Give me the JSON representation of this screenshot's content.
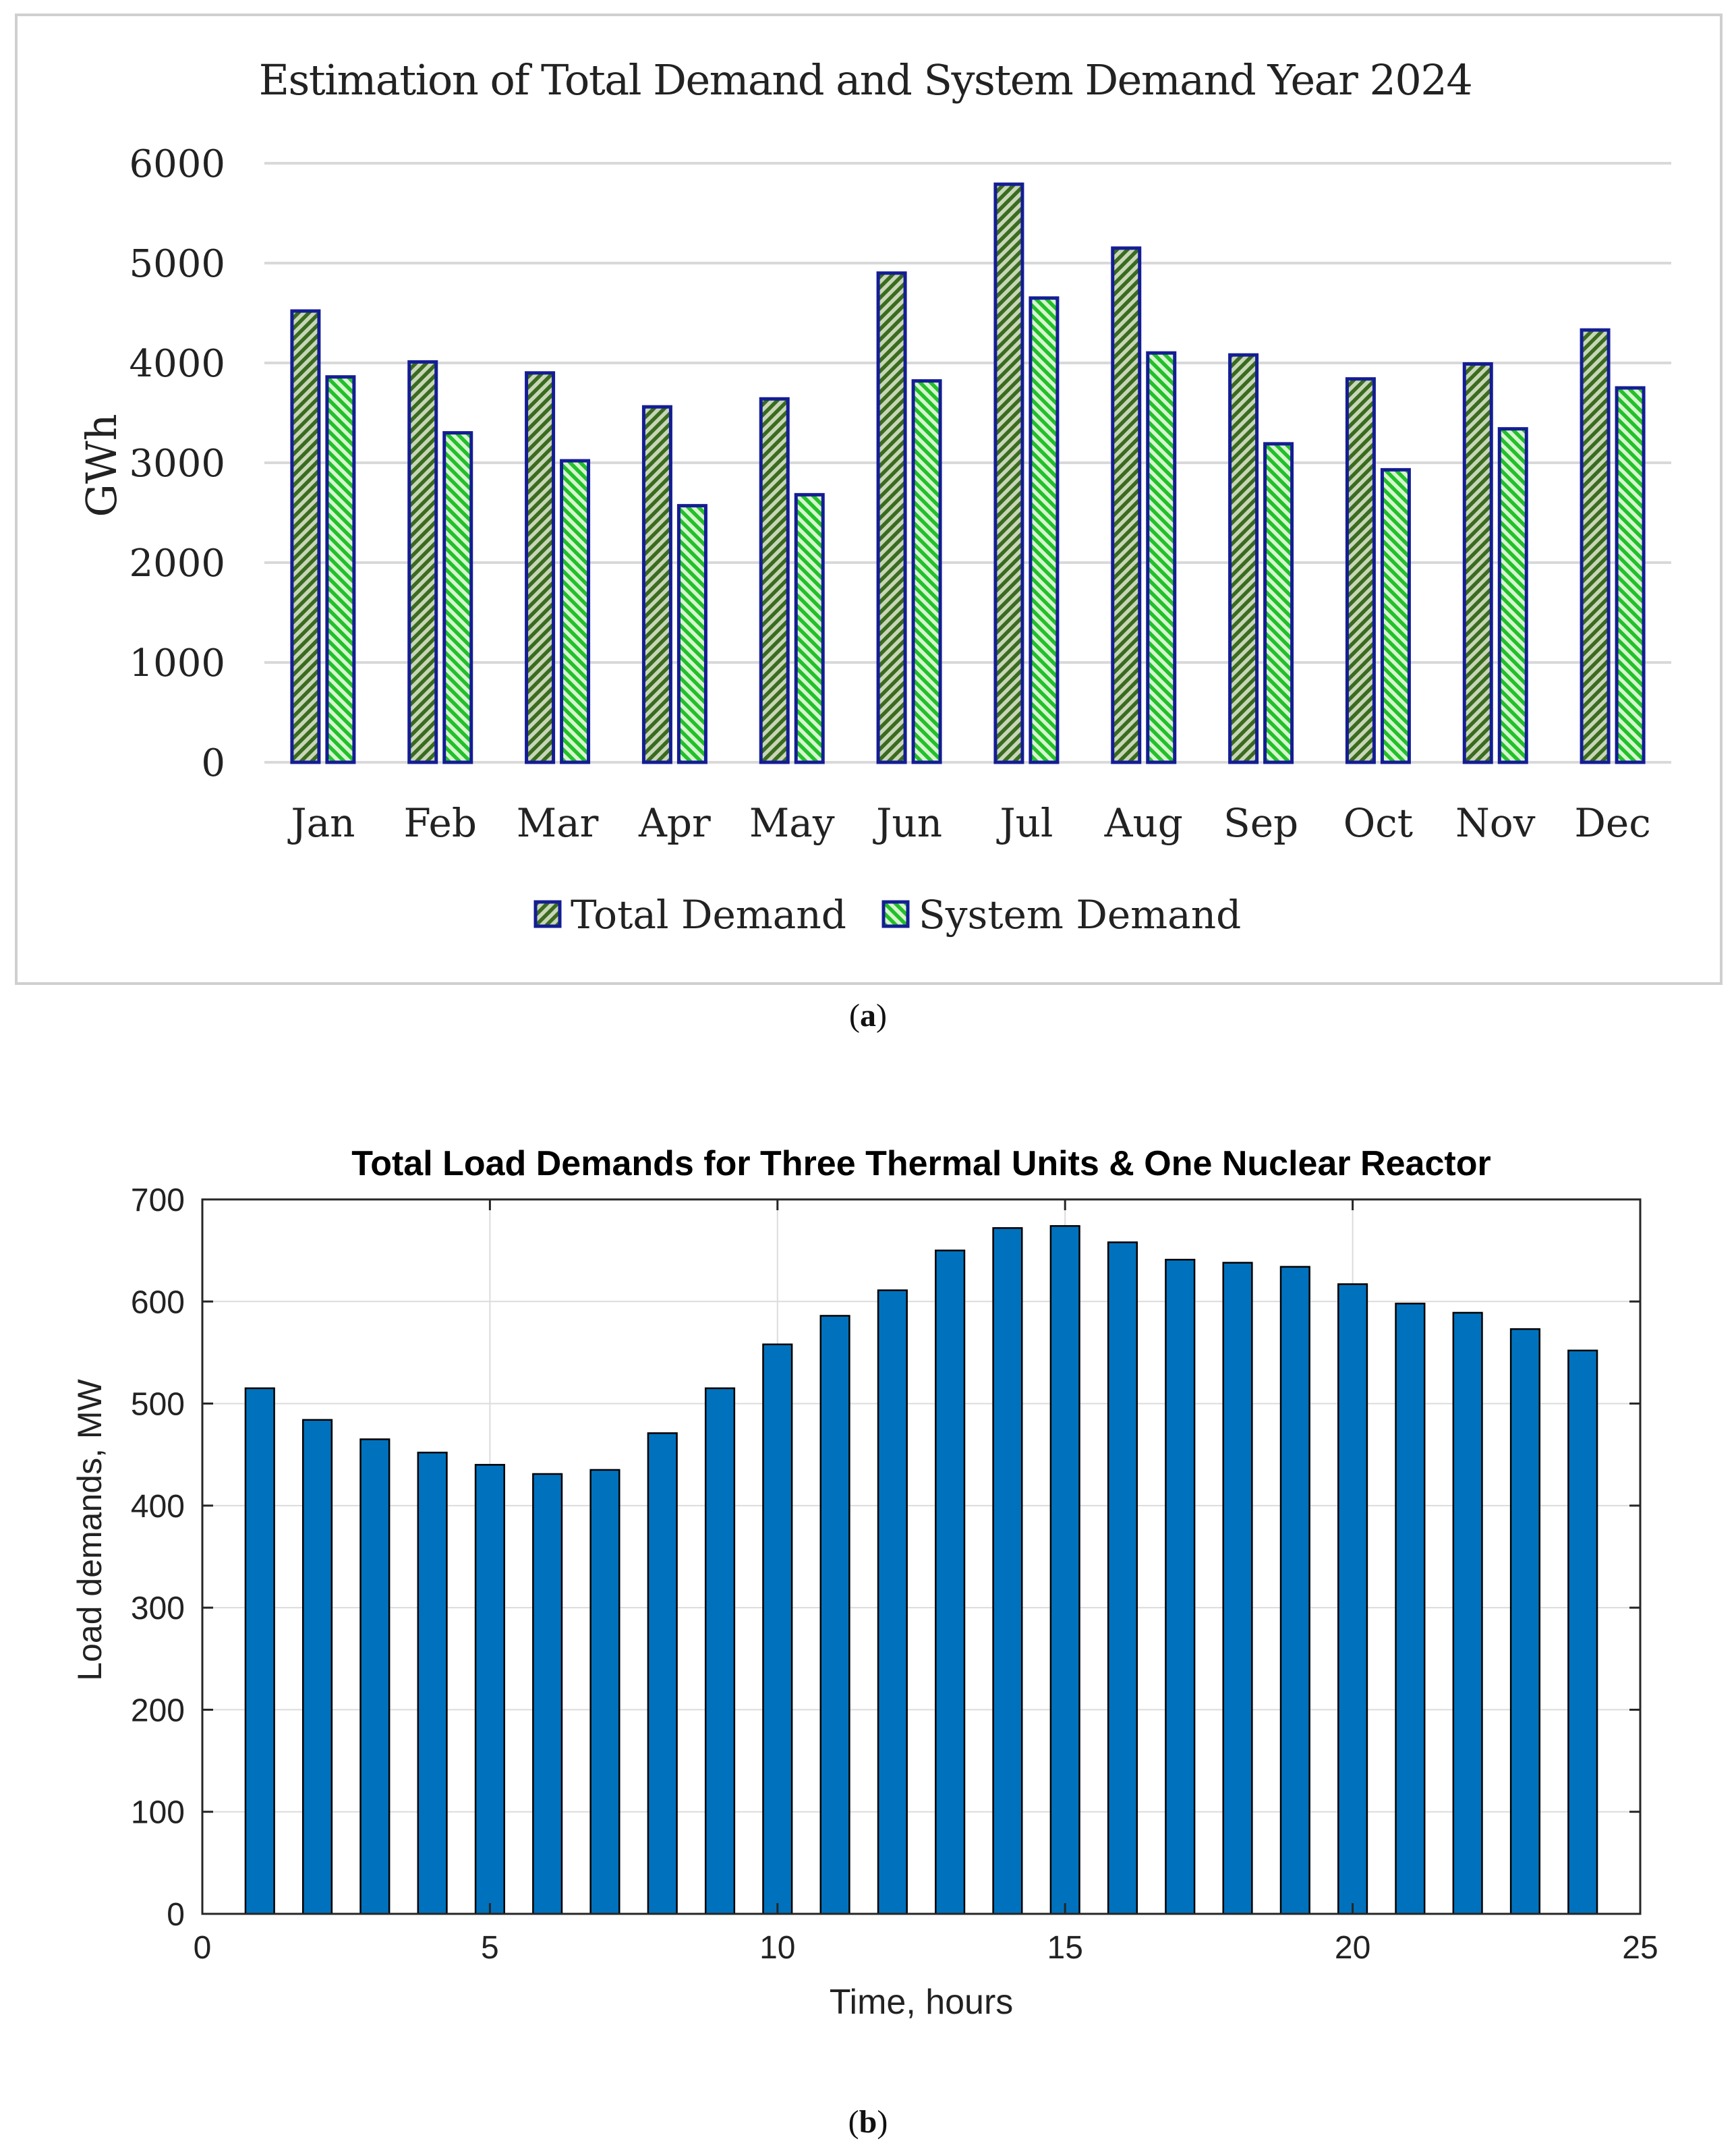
{
  "chart_data": [
    {
      "type": "bar",
      "panel_label": "a",
      "title": "Estimation of Total Demand and System Demand Year 2024",
      "xlabel": "",
      "ylabel": "GWh",
      "ylim": [
        0,
        6000
      ],
      "yticks": [
        "0",
        "1000",
        "2000",
        "3000",
        "4000",
        "5000",
        "6000"
      ],
      "categories": [
        "Jan",
        "Feb",
        "Mar",
        "Apr",
        "May",
        "Jun",
        "Jul",
        "Aug",
        "Sep",
        "Oct",
        "Nov",
        "Dec"
      ],
      "series": [
        {
          "name": "Total Demand",
          "color": "#3a6b1f",
          "values": [
            4520,
            4010,
            3900,
            3560,
            3640,
            4900,
            5790,
            5150,
            4080,
            3840,
            3990,
            4330
          ]
        },
        {
          "name": "System Demand",
          "color": "#22c02a",
          "values": [
            3860,
            3300,
            3020,
            2570,
            2680,
            3820,
            4650,
            4100,
            3190,
            2930,
            3340,
            3750
          ]
        }
      ],
      "legend": "bottom",
      "grid": "horizontal"
    },
    {
      "type": "bar",
      "panel_label": "b",
      "title": "Total Load Demands for Three Thermal Units & One Nuclear Reactor",
      "xlabel": "Time, hours",
      "ylabel": "Load demands, MW",
      "xlim": [
        0,
        25
      ],
      "ylim": [
        0,
        700
      ],
      "xticks": [
        "0",
        "5",
        "10",
        "15",
        "20",
        "25"
      ],
      "yticks": [
        "0",
        "100",
        "200",
        "300",
        "400",
        "500",
        "600",
        "700"
      ],
      "x": [
        1,
        2,
        3,
        4,
        5,
        6,
        7,
        8,
        9,
        10,
        11,
        12,
        13,
        14,
        15,
        16,
        17,
        18,
        19,
        20,
        21,
        22,
        23,
        24
      ],
      "values": [
        515,
        484,
        465,
        452,
        440,
        431,
        435,
        471,
        515,
        558,
        586,
        611,
        650,
        672,
        674,
        658,
        641,
        638,
        634,
        617,
        598,
        589,
        573,
        552
      ],
      "color": "#0072bd",
      "grid": "both"
    }
  ]
}
